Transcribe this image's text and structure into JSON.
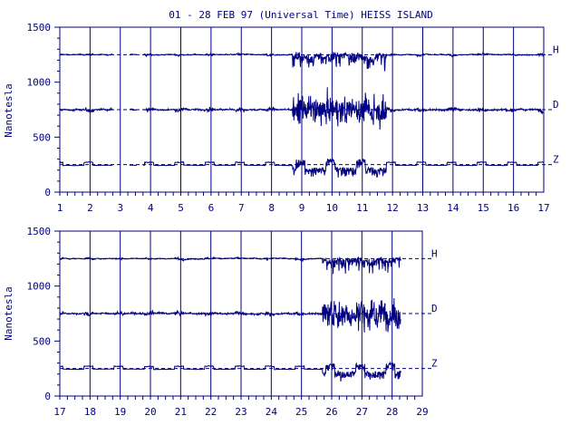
{
  "title": "01 - 28 FEB 97 (Universal Time) HEISS ISLAND",
  "ylabel": "Nanotesla",
  "colors": {
    "ink": "#000080"
  },
  "chart_data": [
    {
      "type": "line",
      "xlabel": "",
      "xlim": [
        1,
        17
      ],
      "ylim": [
        0,
        1500
      ],
      "xticks": [
        "1",
        "2",
        "3",
        "4",
        "5",
        "6",
        "7",
        "8",
        "9",
        "10",
        "11",
        "12",
        "13",
        "14",
        "15",
        "16",
        "17"
      ],
      "yticks": [
        "0",
        "500",
        "1000",
        "1500"
      ],
      "grid": "vertical lines at each day",
      "series": [
        {
          "name": "H",
          "baseline": 1250
        },
        {
          "name": "D",
          "baseline": 750
        },
        {
          "name": "Z",
          "baseline": 250
        }
      ],
      "data_gaps_days": [
        [
          2.75,
          3.3
        ],
        [
          3.55,
          3.75
        ]
      ],
      "disturbed_days": [
        [
          8.7,
          11.8
        ]
      ]
    },
    {
      "type": "line",
      "xlabel": "",
      "xlim": [
        17,
        29
      ],
      "ylim": [
        0,
        1500
      ],
      "xticks": [
        "17",
        "18",
        "19",
        "20",
        "21",
        "22",
        "23",
        "24",
        "25",
        "26",
        "27",
        "28",
        "29"
      ],
      "yticks": [
        "0",
        "500",
        "1000",
        "1500"
      ],
      "grid": "vertical lines at each day",
      "series": [
        {
          "name": "H",
          "baseline": 1250
        },
        {
          "name": "D",
          "baseline": 750
        },
        {
          "name": "Z",
          "baseline": 250
        }
      ],
      "data_end_day": 28.3,
      "disturbed_days": [
        [
          25.7,
          28.3
        ]
      ]
    }
  ]
}
